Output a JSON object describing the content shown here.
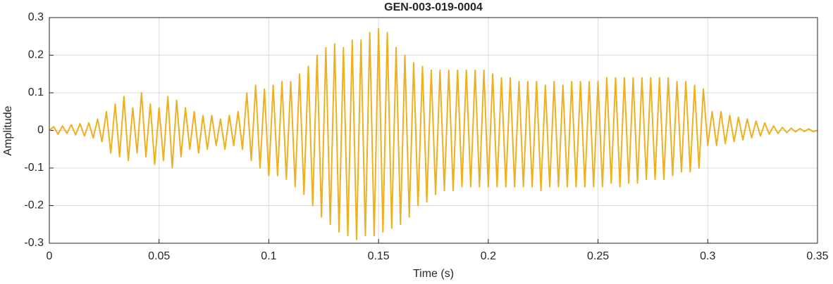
{
  "chart_data": {
    "type": "line",
    "title": "GEN-003-019-0004",
    "x_label": "Time (s)",
    "y_label": "Amplitude",
    "color": "#EDB120",
    "grid": true,
    "xlim": [
      0,
      0.35
    ],
    "xticks": [
      0,
      0.05,
      0.1,
      0.15,
      0.2,
      0.25,
      0.3,
      0.35
    ],
    "ylim": [
      -0.3,
      0.3
    ],
    "yticks": [
      -0.3,
      -0.2,
      -0.1,
      0,
      0.1,
      0.2,
      0.3
    ],
    "x": [
      0,
      0.002,
      0.004,
      0.006,
      0.008,
      0.01,
      0.012,
      0.014,
      0.016,
      0.018,
      0.02,
      0.022,
      0.024,
      0.026,
      0.028,
      0.03,
      0.032,
      0.034,
      0.036,
      0.038,
      0.04,
      0.042,
      0.044,
      0.046,
      0.048,
      0.05,
      0.052,
      0.054,
      0.056,
      0.058,
      0.06,
      0.062,
      0.064,
      0.066,
      0.068,
      0.07,
      0.072,
      0.074,
      0.076,
      0.078,
      0.08,
      0.082,
      0.084,
      0.086,
      0.088,
      0.09,
      0.092,
      0.094,
      0.096,
      0.098,
      0.1,
      0.102,
      0.104,
      0.106,
      0.108,
      0.11,
      0.112,
      0.114,
      0.116,
      0.118,
      0.12,
      0.122,
      0.124,
      0.126,
      0.128,
      0.13,
      0.132,
      0.134,
      0.136,
      0.138,
      0.14,
      0.142,
      0.144,
      0.146,
      0.148,
      0.15,
      0.152,
      0.154,
      0.156,
      0.158,
      0.16,
      0.162,
      0.164,
      0.166,
      0.168,
      0.17,
      0.172,
      0.174,
      0.176,
      0.178,
      0.18,
      0.182,
      0.184,
      0.186,
      0.188,
      0.19,
      0.192,
      0.194,
      0.196,
      0.198,
      0.2,
      0.202,
      0.204,
      0.206,
      0.208,
      0.21,
      0.212,
      0.214,
      0.216,
      0.218,
      0.22,
      0.222,
      0.224,
      0.226,
      0.228,
      0.23,
      0.232,
      0.234,
      0.236,
      0.238,
      0.24,
      0.242,
      0.244,
      0.246,
      0.248,
      0.25,
      0.252,
      0.254,
      0.256,
      0.258,
      0.26,
      0.262,
      0.264,
      0.266,
      0.268,
      0.27,
      0.272,
      0.274,
      0.276,
      0.278,
      0.28,
      0.282,
      0.284,
      0.286,
      0.288,
      0.29,
      0.292,
      0.294,
      0.296,
      0.298,
      0.3,
      0.302,
      0.304,
      0.306,
      0.308,
      0.31,
      0.312,
      0.314,
      0.316,
      0.318,
      0.32,
      0.322,
      0.324,
      0.326,
      0.328,
      0.33,
      0.332,
      0.334,
      0.336,
      0.338,
      0.34,
      0.342,
      0.344,
      0.346,
      0.348,
      0.35
    ],
    "values": [
      0,
      0.01,
      -0.01,
      0.012,
      -0.008,
      0.015,
      -0.012,
      0.018,
      -0.015,
      0.02,
      -0.02,
      0.03,
      -0.03,
      0.05,
      -0.06,
      0.07,
      -0.07,
      0.09,
      -0.08,
      0.06,
      -0.06,
      0.1,
      -0.07,
      0.07,
      -0.09,
      0.06,
      -0.08,
      0.09,
      -0.1,
      0.08,
      -0.07,
      0.06,
      -0.05,
      0.05,
      -0.06,
      0.04,
      -0.05,
      0.04,
      -0.04,
      0.03,
      -0.05,
      0.04,
      -0.04,
      0.05,
      -0.05,
      0.1,
      -0.08,
      0.12,
      -0.1,
      0.11,
      -0.12,
      0.12,
      -0.12,
      0.13,
      -0.13,
      0.13,
      -0.15,
      0.15,
      -0.17,
      0.17,
      -0.2,
      0.2,
      -0.23,
      0.22,
      -0.25,
      0.23,
      -0.27,
      0.22,
      -0.28,
      0.24,
      -0.29,
      0.24,
      -0.28,
      0.26,
      -0.28,
      0.27,
      -0.27,
      0.26,
      -0.26,
      0.22,
      -0.25,
      0.2,
      -0.23,
      0.18,
      -0.2,
      0.17,
      -0.19,
      0.16,
      -0.17,
      0.16,
      -0.16,
      0.16,
      -0.16,
      0.16,
      -0.15,
      0.16,
      -0.15,
      0.16,
      -0.15,
      0.16,
      -0.15,
      0.15,
      -0.15,
      0.14,
      -0.15,
      0.14,
      -0.15,
      0.13,
      -0.15,
      0.13,
      -0.15,
      0.13,
      -0.16,
      0.12,
      -0.15,
      0.13,
      -0.15,
      0.12,
      -0.15,
      0.13,
      -0.15,
      0.13,
      -0.15,
      0.13,
      -0.15,
      0.13,
      -0.15,
      0.14,
      -0.14,
      0.14,
      -0.15,
      0.14,
      -0.14,
      0.14,
      -0.14,
      0.14,
      -0.13,
      0.14,
      -0.13,
      0.14,
      -0.13,
      0.14,
      -0.12,
      0.13,
      -0.11,
      0.13,
      -0.11,
      0.12,
      -0.1,
      0.11,
      -0.04,
      0.05,
      -0.04,
      0.05,
      -0.035,
      0.04,
      -0.03,
      0.035,
      -0.025,
      0.03,
      -0.02,
      0.025,
      -0.015,
      0.02,
      -0.01,
      0.012,
      -0.008,
      0.008,
      -0.006,
      0.006,
      -0.004,
      0.005,
      -0.003,
      0.004,
      -0.003,
      0
    ]
  }
}
